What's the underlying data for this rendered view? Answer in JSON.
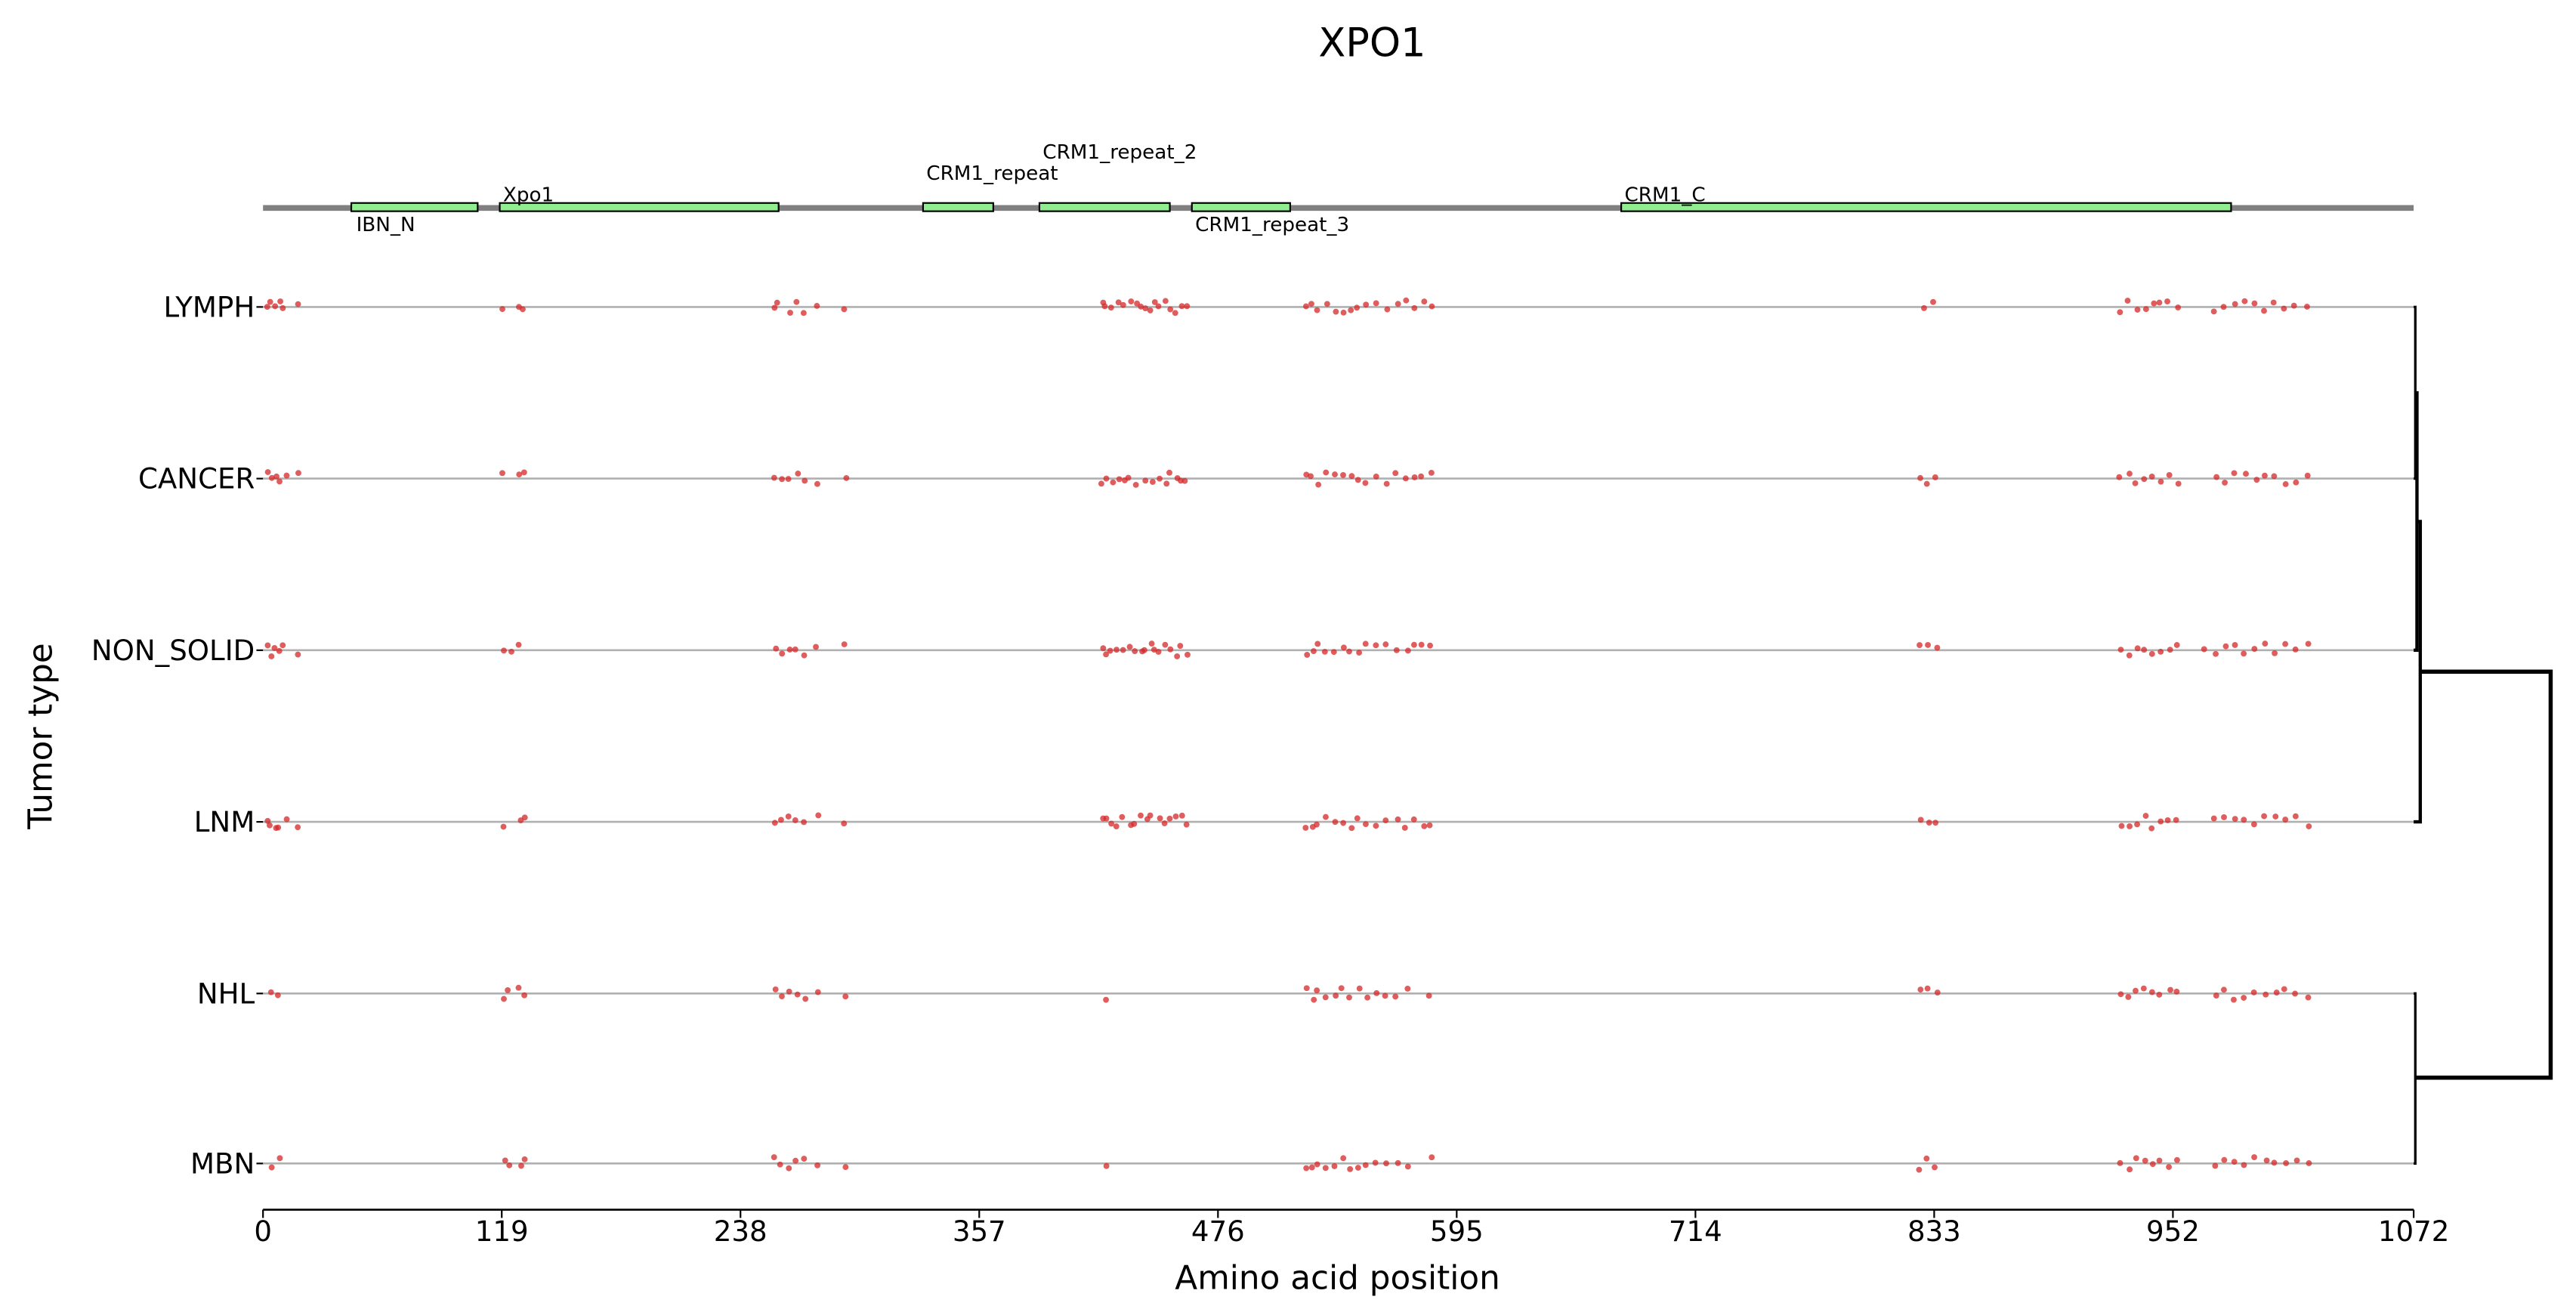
{
  "chart_data": {
    "type": "scatter",
    "title": "XPO1",
    "xlabel": "Amino acid position",
    "ylabel": "Tumor type",
    "xlim": [
      0,
      1072
    ],
    "xticks": [
      "0",
      "119",
      "238",
      "357",
      "476",
      "595",
      "714",
      "833",
      "952",
      "1072"
    ],
    "xtick_values": [
      0,
      119,
      238,
      357,
      476,
      595,
      714,
      833,
      952,
      1072
    ],
    "point_color": "#d62728",
    "domain_color": "#90ee90",
    "protein_length": 1072,
    "domains": [
      {
        "name": "IBN_N",
        "start": 44,
        "end": 107
      },
      {
        "name": "Xpo1",
        "start": 118,
        "end": 257
      },
      {
        "name": "CRM1_repeat",
        "start": 329,
        "end": 364
      },
      {
        "name": "CRM1_repeat_2",
        "start": 387,
        "end": 452
      },
      {
        "name": "CRM1_repeat_3",
        "start": 463,
        "end": 512
      },
      {
        "name": "CRM1_C",
        "start": 677,
        "end": 981
      }
    ],
    "rows": [
      {
        "label": "LYMPH",
        "positions": [
          2,
          4,
          6,
          8,
          10,
          17,
          120,
          128,
          130,
          255,
          257,
          262,
          266,
          270,
          276,
          290,
          418,
          420,
          423,
          426,
          429,
          432,
          435,
          438,
          440,
          442,
          445,
          447,
          450,
          452,
          455,
          458,
          460,
          520,
          523,
          526,
          530,
          534,
          538,
          542,
          546,
          550,
          555,
          560,
          565,
          570,
          574,
          578,
          582,
          828,
          832,
          926,
          930,
          934,
          938,
          942,
          946,
          950,
          954,
          973,
          978,
          983,
          988,
          993,
          998,
          1003,
          1008,
          1013,
          1019
        ]
      },
      {
        "label": "CANCER",
        "positions": [
          2,
          4,
          6,
          8,
          12,
          17,
          120,
          128,
          130,
          255,
          258,
          262,
          266,
          270,
          276,
          290,
          418,
          420,
          423,
          426,
          429,
          432,
          435,
          440,
          443,
          447,
          450,
          452,
          455,
          458,
          460,
          520,
          523,
          526,
          530,
          534,
          538,
          542,
          546,
          550,
          555,
          560,
          565,
          570,
          574,
          578,
          582,
          826,
          830,
          834,
          926,
          930,
          934,
          938,
          942,
          946,
          950,
          954,
          973,
          978,
          983,
          988,
          993,
          998,
          1003,
          1008,
          1013,
          1019
        ]
      },
      {
        "label": "NON_SOLID",
        "positions": [
          2,
          4,
          6,
          8,
          10,
          17,
          120,
          124,
          128,
          255,
          258,
          262,
          266,
          270,
          276,
          290,
          418,
          420,
          423,
          426,
          429,
          432,
          435,
          438,
          440,
          443,
          445,
          447,
          450,
          452,
          455,
          458,
          460,
          520,
          523,
          526,
          530,
          534,
          538,
          542,
          546,
          550,
          555,
          560,
          565,
          570,
          574,
          578,
          582,
          826,
          830,
          834,
          926,
          930,
          934,
          938,
          942,
          946,
          950,
          954,
          968,
          973,
          978,
          983,
          988,
          993,
          998,
          1003,
          1008,
          1013,
          1019
        ]
      },
      {
        "label": "LNM",
        "positions": [
          2,
          4,
          6,
          8,
          12,
          17,
          120,
          128,
          130,
          255,
          258,
          262,
          266,
          270,
          276,
          290,
          418,
          420,
          423,
          426,
          429,
          432,
          435,
          438,
          440,
          443,
          447,
          450,
          452,
          455,
          458,
          460,
          520,
          523,
          526,
          530,
          534,
          538,
          542,
          546,
          550,
          555,
          560,
          565,
          570,
          574,
          578,
          582,
          826,
          830,
          834,
          926,
          930,
          934,
          938,
          942,
          946,
          950,
          954,
          973,
          978,
          983,
          988,
          993,
          998,
          1003,
          1008,
          1013,
          1019
        ]
      },
      {
        "label": "NHL",
        "positions": [
          4,
          8,
          120,
          122,
          128,
          130,
          255,
          258,
          262,
          266,
          270,
          276,
          290,
          421,
          520,
          523,
          526,
          530,
          534,
          538,
          542,
          546,
          550,
          555,
          560,
          565,
          570,
          582,
          826,
          830,
          834,
          926,
          930,
          934,
          938,
          942,
          946,
          950,
          954,
          973,
          978,
          983,
          988,
          993,
          998,
          1003,
          1008,
          1013,
          1019
        ]
      },
      {
        "label": "MBN",
        "positions": [
          4,
          8,
          120,
          122,
          128,
          130,
          255,
          258,
          262,
          266,
          270,
          276,
          290,
          421,
          520,
          523,
          526,
          530,
          534,
          538,
          542,
          546,
          550,
          555,
          560,
          565,
          570,
          582,
          826,
          830,
          834,
          926,
          930,
          934,
          938,
          942,
          946,
          950,
          954,
          973,
          978,
          983,
          988,
          993,
          998,
          1003,
          1008,
          1013,
          1019
        ]
      }
    ],
    "dendrogram": "((((LYMPH,CANCER),NON_SOLID),LNM),(NHL,MBN))",
    "grid": false
  }
}
